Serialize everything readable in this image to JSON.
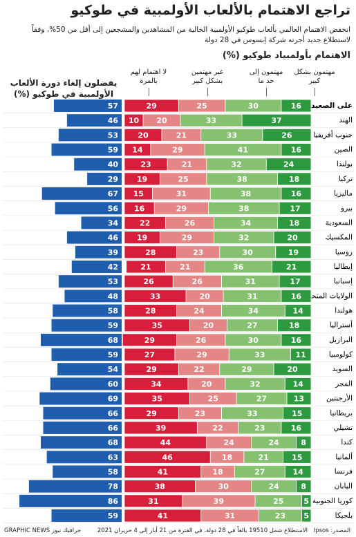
{
  "header": {
    "title": "تراجع الاهتمام بالألعاب الأولمبية في طوكيو",
    "subtitle": "انخفض الاهتمام العالمي بألعاب طوكيو الأولمبية الخالية من المشاهدين والمشجعين إلى أقل من 50%، وفقاً لاستطلاع جديد أجرته شركة إبسوس في 28 دولة"
  },
  "chart_data": [
    {
      "type": "stacked-bar",
      "title": "الاهتمام بأولمبياد طوكيو (%)",
      "categories": [
        "على الصعيد العالمي",
        "الهند",
        "جنوب أفريقيا",
        "الصين",
        "بولندا",
        "تركيا",
        "ماليزيا",
        "بيرو",
        "السعودية",
        "المكسيك",
        "روسيا",
        "إيطاليا",
        "إسبانيا",
        "الولايات المتحدة",
        "هولندا",
        "أستراليا",
        "البرازيل",
        "كولومبيا",
        "السويد",
        "المجر",
        "الأرجنتين",
        "بريطانيا",
        "تشيلي",
        "كندا",
        "ألمانيا",
        "فرنسا",
        "اليابان",
        "كوريا الجنوبية",
        "بلجيكا"
      ],
      "xlim": [
        0,
        100
      ],
      "series": [
        {
          "name": "مهتمون بشكل كبير",
          "color": "#2e9a3f",
          "values": [
            16,
            37,
            26,
            16,
            24,
            18,
            16,
            17,
            18,
            20,
            19,
            21,
            17,
            16,
            14,
            18,
            16,
            11,
            20,
            14,
            13,
            15,
            16,
            8,
            15,
            14,
            8,
            5,
            5
          ]
        },
        {
          "name": "مهتمون إلى حد ما",
          "color": "#86c170",
          "values": [
            30,
            33,
            33,
            41,
            32,
            38,
            38,
            38,
            34,
            32,
            30,
            36,
            31,
            31,
            34,
            27,
            30,
            33,
            29,
            32,
            27,
            33,
            23,
            24,
            21,
            27,
            24,
            25,
            23
          ]
        },
        {
          "name": "غير مهتمين بشكل كبير",
          "color": "#e58686",
          "values": [
            25,
            20,
            21,
            29,
            21,
            25,
            31,
            29,
            26,
            29,
            23,
            21,
            26,
            20,
            24,
            20,
            26,
            29,
            22,
            20,
            25,
            23,
            22,
            24,
            18,
            18,
            30,
            39,
            31
          ]
        },
        {
          "name": "لا اهتمام لهم بالمرة",
          "color": "#d71f3c",
          "values": [
            29,
            10,
            20,
            14,
            23,
            19,
            15,
            16,
            22,
            19,
            28,
            21,
            26,
            33,
            28,
            35,
            29,
            27,
            29,
            34,
            35,
            29,
            39,
            44,
            46,
            41,
            38,
            31,
            41
          ]
        }
      ]
    },
    {
      "type": "bar",
      "title": "يفضلون إلغاء دورة الألعاب الأولمبية في طوكيو (%)",
      "color": "#1f5eae",
      "xlim": [
        0,
        100
      ],
      "values": [
        57,
        46,
        53,
        59,
        40,
        29,
        67,
        56,
        34,
        46,
        39,
        42,
        53,
        48,
        58,
        59,
        68,
        59,
        54,
        60,
        69,
        66,
        66,
        68,
        63,
        58,
        78,
        86,
        59
      ]
    }
  ],
  "footer": {
    "source": "المصدر: Ipsos",
    "note": "الاستطلاع شمل 19510 بالغاً في 28 دولة، في الفترة من 21 أيار إلى 4 حزيران 2021",
    "credit": "GRAPHIC NEWS جرافيك نيوز"
  }
}
